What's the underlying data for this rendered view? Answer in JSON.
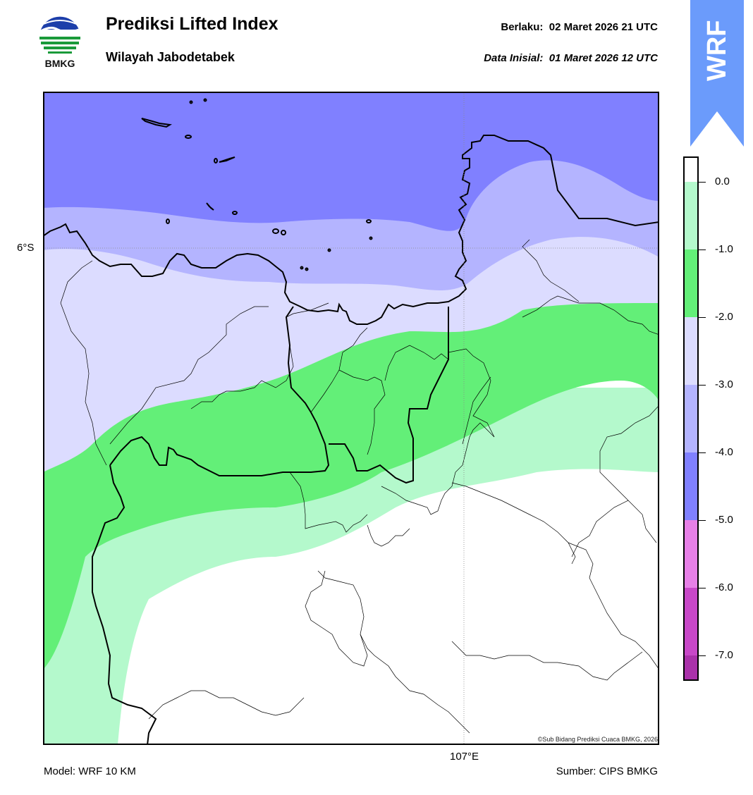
{
  "header": {
    "title": "Prediksi Lifted Index",
    "subtitle": "Wilayah Jabodetabek",
    "valid_label": "Berlaku:",
    "valid_time": "02 Maret 2026 21 UTC",
    "init_label": "Data Inisial:",
    "init_time": "01 Maret 2026 12 UTC"
  },
  "logo": {
    "text": "BMKG",
    "icon": "bmkg-logo-icon"
  },
  "badge": {
    "text": "WRF",
    "color": "#6b9bfb",
    "icon": "up-arrow-icon"
  },
  "map": {
    "lat_label": "6°S",
    "lon_label": "107°E",
    "copyright": "©Sub Bidang Prediksi Cuaca BMKG, 2026"
  },
  "colorbar": {
    "ticks": [
      "0.0",
      "-1.0",
      "-2.0",
      "-3.0",
      "-4.0",
      "-5.0",
      "-6.0",
      "-7.0"
    ],
    "colors": [
      "#ffffff",
      "#b4f9cc",
      "#63ef78",
      "#dcdcff",
      "#b4b4ff",
      "#8080ff",
      "#e780e7",
      "#c848c8",
      "#aa32aa",
      "#7e1a80"
    ]
  },
  "footer": {
    "model": "Model: WRF 10 KM",
    "source": "Sumber: CIPS BMKG"
  }
}
